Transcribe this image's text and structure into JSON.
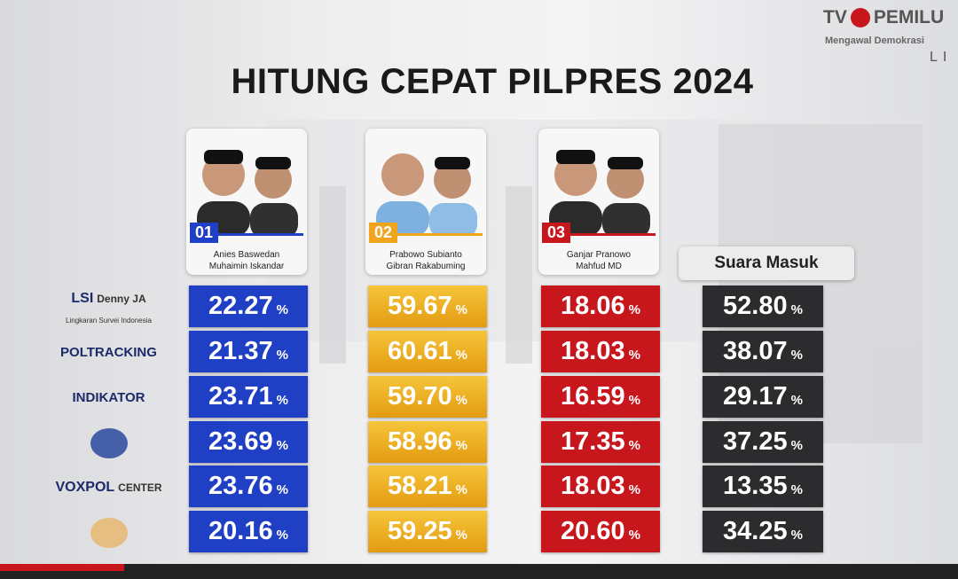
{
  "header": {
    "title": "HITUNG CEPAT PILPRES 2024",
    "logo_tv": "TV",
    "logo_name": "PEMILU",
    "tagline": "Mengawal Demokrasi",
    "corner": "LI"
  },
  "candidates": [
    {
      "number": "01",
      "names": [
        "Anies Baswedan",
        "Muhaimin Iskandar"
      ],
      "color": "#1f3fc4"
    },
    {
      "number": "02",
      "names": [
        "Prabowo Subianto",
        "Gibran Rakabuming"
      ],
      "color": "#f0a51c"
    },
    {
      "number": "03",
      "names": [
        "Ganjar Pranowo",
        "Mahfud MD"
      ],
      "color": "#c8161d"
    }
  ],
  "suara_masuk": {
    "label": "Suara Masuk",
    "color": "#2c2c2e"
  },
  "unit": "%",
  "pollsters": [
    {
      "logo": [
        "LSI",
        "Denny JA"
      ],
      "subtitle": "Lingkaran Survei Indonesia",
      "values": [
        "22.27",
        "59.67",
        "18.06",
        "52.80"
      ]
    },
    {
      "logo": [
        "POLTRACKING"
      ],
      "values": [
        "21.37",
        "60.61",
        "18.03",
        "38.07"
      ]
    },
    {
      "logo": [
        "INDIKATOR"
      ],
      "values": [
        "23.71",
        "59.70",
        "16.59",
        "29.17"
      ]
    },
    {
      "values": [
        "23.69",
        "58.96",
        "17.35",
        "37.25"
      ]
    },
    {
      "logo": [
        "VOXPOL",
        "CENTER"
      ],
      "values": [
        "23.76",
        "58.21",
        "18.03",
        "13.35"
      ]
    },
    {
      "values": [
        "20.16",
        "59.25",
        "20.60",
        "34.25"
      ]
    }
  ]
}
